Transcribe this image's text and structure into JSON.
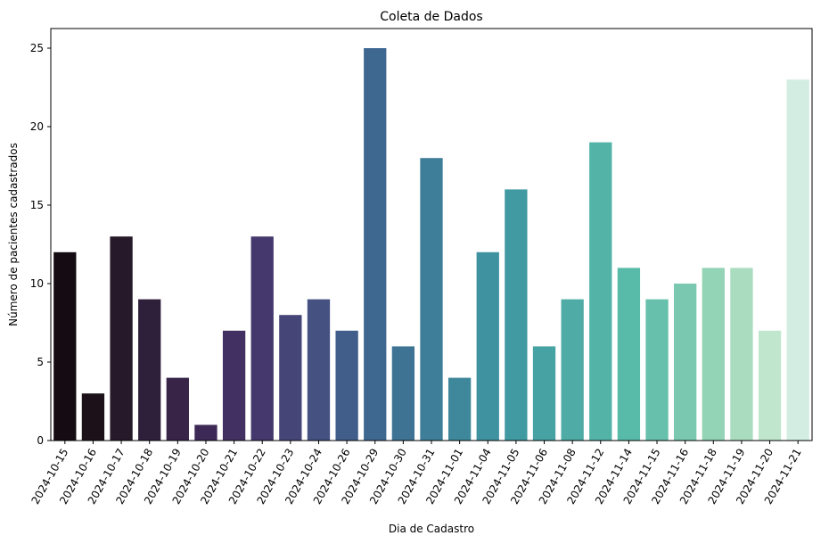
{
  "chart_data": {
    "type": "bar",
    "title": "Coleta de Dados",
    "xlabel": "Dia de Cadastro",
    "ylabel": "Número de pacientes cadastrados",
    "ylim": [
      0,
      26.25
    ],
    "yticks": [
      0,
      5,
      10,
      15,
      20,
      25
    ],
    "grid": false,
    "legend": "none",
    "palette": "mako",
    "categories": [
      "2024-10-15",
      "2024-10-16",
      "2024-10-17",
      "2024-10-18",
      "2024-10-19",
      "2024-10-20",
      "2024-10-21",
      "2024-10-22",
      "2024-10-23",
      "2024-10-24",
      "2024-10-26",
      "2024-10-29",
      "2024-10-30",
      "2024-10-31",
      "2024-11-01",
      "2024-11-04",
      "2024-11-05",
      "2024-11-06",
      "2024-11-08",
      "2024-11-12",
      "2024-11-14",
      "2024-11-15",
      "2024-11-16",
      "2024-11-18",
      "2024-11-19",
      "2024-11-20",
      "2024-11-21"
    ],
    "values": [
      12,
      3,
      13,
      9,
      4,
      1,
      7,
      13,
      8,
      9,
      7,
      25,
      6,
      18,
      4,
      12,
      16,
      6,
      9,
      19,
      11,
      9,
      10,
      11,
      11,
      7,
      23
    ],
    "colors": [
      "#150b12",
      "#1c1118",
      "#261a2a",
      "#2e1f3a",
      "#372447",
      "#3c2955",
      "#413061",
      "#45386c",
      "#464577",
      "#445181",
      "#415d8a",
      "#3f6891",
      "#3f7394",
      "#3f7e98",
      "#3f889b",
      "#3f929f",
      "#4199a1",
      "#46a2a3",
      "#4eaba5",
      "#52b3a6",
      "#58baa8",
      "#66c0ab",
      "#7ac8af",
      "#93d3b6",
      "#aadcbf",
      "#c1e6ce",
      "#d4ede2"
    ]
  }
}
